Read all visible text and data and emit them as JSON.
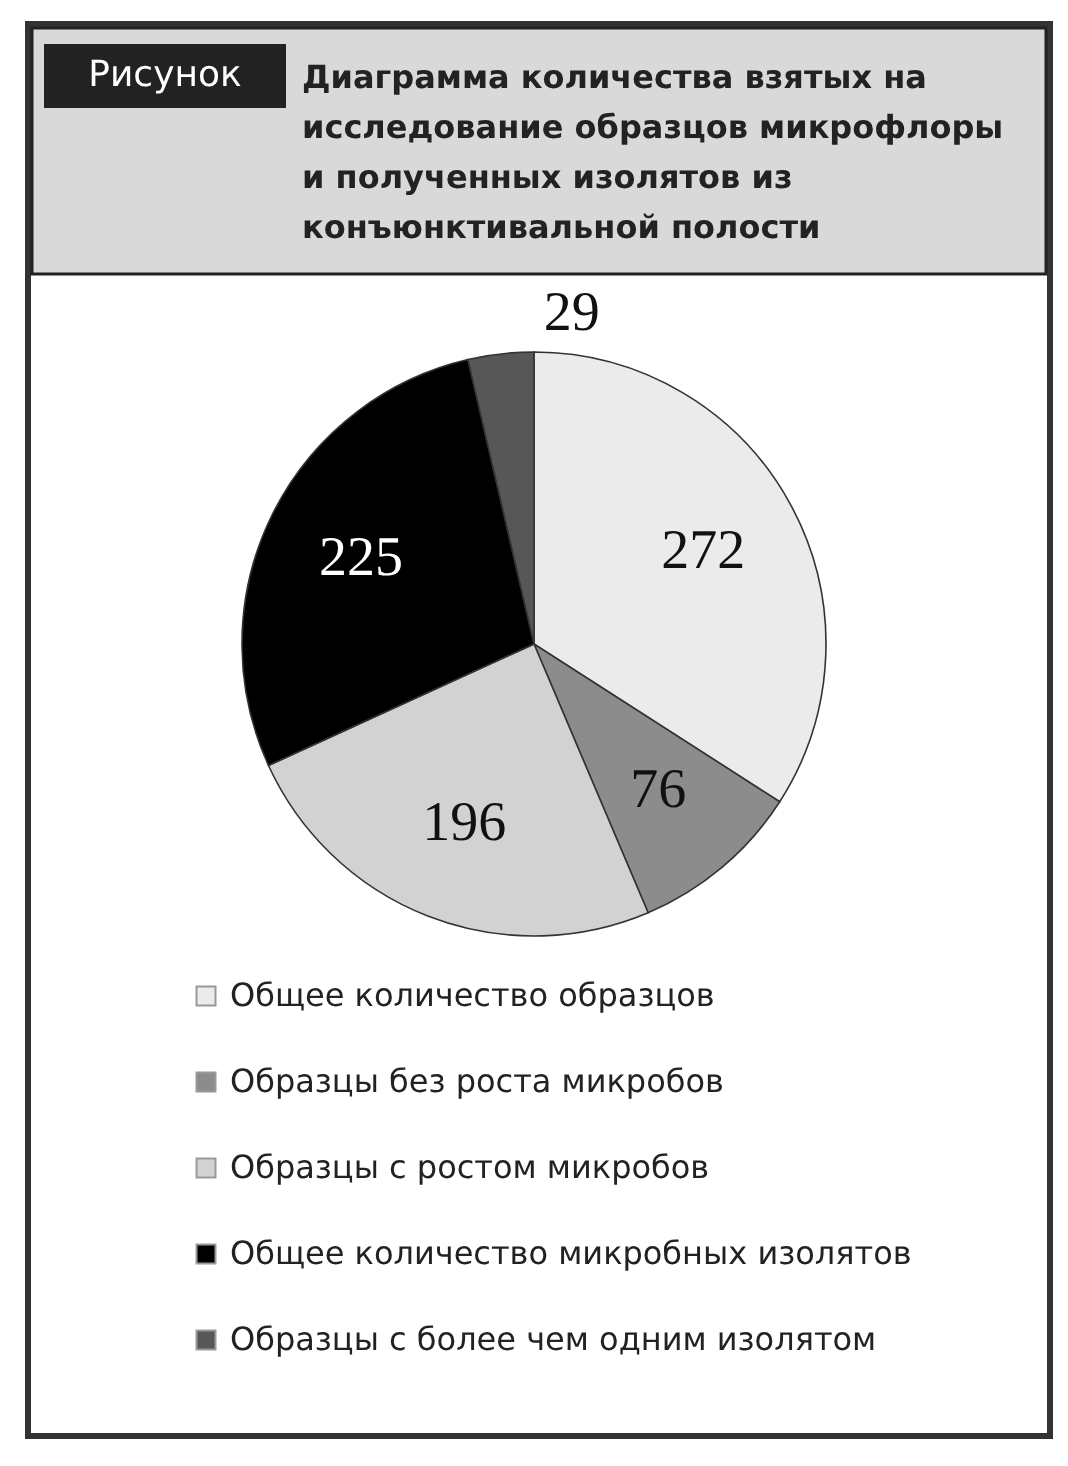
{
  "chart_data": {
    "type": "pie",
    "title": "Диаграмма количества взятых на исследование образцов микрофлоры и полученных изолятов из конъюнктивальной полости",
    "annotations": [
      "Рисунок"
    ],
    "categories": [
      "Общее количество образцов",
      "Образцы без роста микробов",
      "Образцы с ростом микробов",
      "Общее количество микробных изолятов",
      "Образцы с более чем одним изолятом"
    ],
    "values": [
      272,
      76,
      196,
      225,
      29
    ],
    "colors": [
      "#ebebeb",
      "#8c8c8c",
      "#d2d2d2",
      "#000000",
      "#575757"
    ],
    "data_labels": true,
    "legend": "bottom"
  }
}
